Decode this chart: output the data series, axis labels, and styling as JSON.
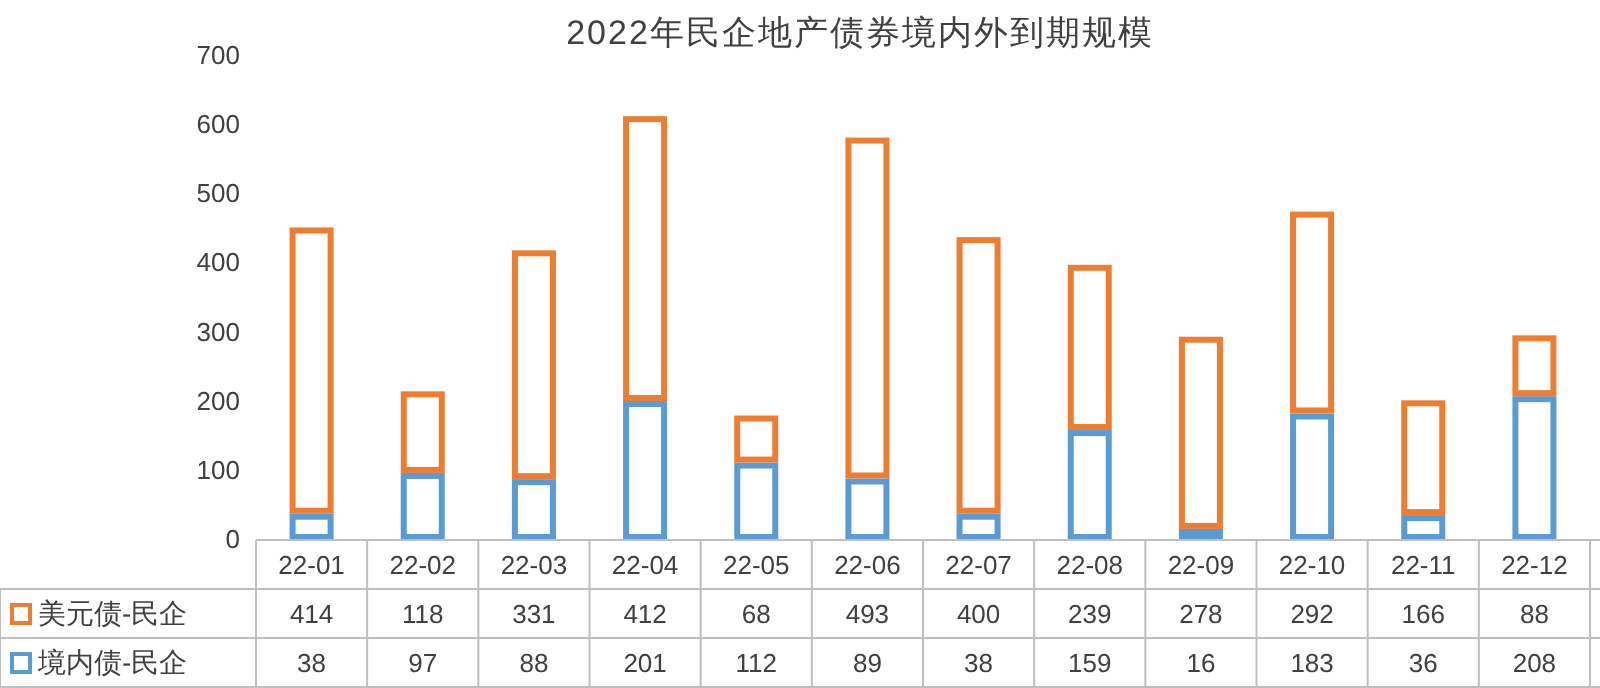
{
  "chart_data": {
    "type": "bar",
    "title": "2022年民企地产债券境内外到期规模",
    "categories": [
      "22-01",
      "22-02",
      "22-03",
      "22-04",
      "22-05",
      "22-06",
      "22-07",
      "22-08",
      "22-09",
      "22-10",
      "22-11",
      "22-12"
    ],
    "series": [
      {
        "name": "境内债-民企",
        "color": "#5b9bd5",
        "values": [
          38,
          97,
          88,
          201,
          112,
          89,
          38,
          159,
          16,
          183,
          36,
          208
        ]
      },
      {
        "name": "美元债-民企",
        "color": "#ed7d31",
        "values": [
          414,
          118,
          331,
          412,
          68,
          493,
          400,
          239,
          278,
          292,
          166,
          88
        ]
      }
    ],
    "stacked": true,
    "ylim": [
      0,
      700
    ],
    "yticks": [
      0,
      100,
      200,
      300,
      400,
      500,
      600,
      700
    ],
    "data_labels": true,
    "legend": "bottom",
    "grid": false
  }
}
